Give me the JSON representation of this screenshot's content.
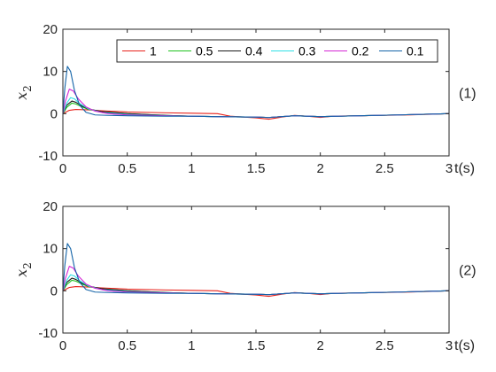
{
  "chart_data": [
    {
      "type": "line",
      "panel_label": "(1)",
      "xlabel": "t(s)",
      "ylabel": "x",
      "ylabel_sub": "2",
      "xlim": [
        0,
        3
      ],
      "ylim": [
        -10,
        20
      ],
      "xticks": [
        0,
        0.5,
        1,
        1.5,
        2,
        2.5,
        3
      ],
      "yticks": [
        -10,
        0,
        10,
        20
      ],
      "grid": false,
      "legend": {
        "placement": "top-right",
        "orientation": "horizontal"
      },
      "series": [
        {
          "name": "1",
          "color": "#e8231c",
          "points": [
            [
              0,
              0
            ],
            [
              0.05,
              0.8
            ],
            [
              0.1,
              1.0
            ],
            [
              0.2,
              0.9
            ],
            [
              0.3,
              0.7
            ],
            [
              0.5,
              0.4
            ],
            [
              0.8,
              0.2
            ],
            [
              1.0,
              0.1
            ],
            [
              1.2,
              0
            ],
            [
              1.3,
              -0.6
            ],
            [
              1.5,
              -1.0
            ],
            [
              1.6,
              -1.3
            ],
            [
              1.7,
              -0.8
            ],
            [
              1.8,
              -0.4
            ],
            [
              1.9,
              -0.6
            ],
            [
              2.0,
              -0.9
            ],
            [
              2.1,
              -0.6
            ],
            [
              2.3,
              -0.5
            ],
            [
              2.5,
              -0.4
            ],
            [
              2.7,
              -0.3
            ],
            [
              2.9,
              -0.1
            ],
            [
              3.0,
              0
            ]
          ]
        },
        {
          "name": "0.5",
          "color": "#1fc21f",
          "points": [
            [
              0,
              0
            ],
            [
              0.03,
              1.5
            ],
            [
              0.07,
              2.5
            ],
            [
              0.1,
              2.3
            ],
            [
              0.15,
              1.6
            ],
            [
              0.2,
              1.0
            ],
            [
              0.3,
              0.5
            ],
            [
              0.5,
              0
            ],
            [
              0.8,
              -0.4
            ],
            [
              1.0,
              -0.6
            ],
            [
              1.2,
              -0.7
            ],
            [
              1.5,
              -0.8
            ],
            [
              1.6,
              -0.9
            ],
            [
              1.8,
              -0.5
            ],
            [
              2.0,
              -0.7
            ],
            [
              2.3,
              -0.5
            ],
            [
              2.6,
              -0.3
            ],
            [
              3.0,
              0
            ]
          ]
        },
        {
          "name": "0.4",
          "color": "#1a1a1a",
          "points": [
            [
              0,
              0
            ],
            [
              0.03,
              2.0
            ],
            [
              0.07,
              3.0
            ],
            [
              0.1,
              2.7
            ],
            [
              0.15,
              1.8
            ],
            [
              0.2,
              1.1
            ],
            [
              0.3,
              0.5
            ],
            [
              0.5,
              0
            ],
            [
              0.8,
              -0.4
            ],
            [
              1.0,
              -0.6
            ],
            [
              1.2,
              -0.7
            ],
            [
              1.5,
              -0.8
            ],
            [
              1.6,
              -0.9
            ],
            [
              1.8,
              -0.5
            ],
            [
              2.0,
              -0.7
            ],
            [
              2.3,
              -0.5
            ],
            [
              2.6,
              -0.3
            ],
            [
              3.0,
              0
            ]
          ]
        },
        {
          "name": "0.3",
          "color": "#2fe0e6",
          "points": [
            [
              0,
              0
            ],
            [
              0.03,
              2.5
            ],
            [
              0.06,
              3.8
            ],
            [
              0.09,
              3.5
            ],
            [
              0.13,
              2.4
            ],
            [
              0.2,
              1.1
            ],
            [
              0.3,
              0.3
            ],
            [
              0.5,
              -0.2
            ],
            [
              0.8,
              -0.5
            ],
            [
              1.0,
              -0.6
            ],
            [
              1.2,
              -0.7
            ],
            [
              1.5,
              -0.8
            ],
            [
              1.6,
              -0.9
            ],
            [
              1.8,
              -0.5
            ],
            [
              2.0,
              -0.7
            ],
            [
              2.3,
              -0.5
            ],
            [
              2.6,
              -0.3
            ],
            [
              3.0,
              0
            ]
          ]
        },
        {
          "name": "0.2",
          "color": "#d526d5",
          "points": [
            [
              0,
              0
            ],
            [
              0.02,
              3.0
            ],
            [
              0.05,
              5.8
            ],
            [
              0.08,
              5.4
            ],
            [
              0.12,
              3.5
            ],
            [
              0.18,
              1.6
            ],
            [
              0.25,
              0.6
            ],
            [
              0.35,
              0
            ],
            [
              0.5,
              -0.3
            ],
            [
              0.8,
              -0.5
            ],
            [
              1.0,
              -0.6
            ],
            [
              1.2,
              -0.7
            ],
            [
              1.5,
              -0.8
            ],
            [
              1.6,
              -0.9
            ],
            [
              1.8,
              -0.5
            ],
            [
              2.0,
              -0.7
            ],
            [
              2.3,
              -0.5
            ],
            [
              2.6,
              -0.3
            ],
            [
              3.0,
              0
            ]
          ]
        },
        {
          "name": "0.1",
          "color": "#1464a8",
          "points": [
            [
              0,
              0
            ],
            [
              0.015,
              6.0
            ],
            [
              0.035,
              11.2
            ],
            [
              0.06,
              10.0
            ],
            [
              0.09,
              5.5
            ],
            [
              0.13,
              2.0
            ],
            [
              0.18,
              0.3
            ],
            [
              0.25,
              -0.3
            ],
            [
              0.35,
              -0.4
            ],
            [
              0.5,
              -0.5
            ],
            [
              0.8,
              -0.6
            ],
            [
              1.0,
              -0.6
            ],
            [
              1.2,
              -0.7
            ],
            [
              1.5,
              -0.8
            ],
            [
              1.6,
              -0.9
            ],
            [
              1.8,
              -0.5
            ],
            [
              2.0,
              -0.7
            ],
            [
              2.3,
              -0.5
            ],
            [
              2.6,
              -0.3
            ],
            [
              3.0,
              0
            ]
          ]
        }
      ]
    },
    {
      "type": "line",
      "panel_label": "(2)",
      "xlabel": "t(s)",
      "ylabel": "x",
      "ylabel_sub": "2",
      "xlim": [
        0,
        3
      ],
      "ylim": [
        -10,
        20
      ],
      "xticks": [
        0,
        0.5,
        1,
        1.5,
        2,
        2.5,
        3
      ],
      "yticks": [
        -10,
        0,
        10,
        20
      ],
      "grid": false,
      "series": [
        {
          "color": "#e8231c",
          "points": [
            [
              0,
              0
            ],
            [
              0.05,
              0.8
            ],
            [
              0.1,
              1.0
            ],
            [
              0.2,
              0.9
            ],
            [
              0.3,
              0.7
            ],
            [
              0.5,
              0.4
            ],
            [
              0.8,
              0.2
            ],
            [
              1.0,
              0.1
            ],
            [
              1.2,
              0
            ],
            [
              1.3,
              -0.6
            ],
            [
              1.5,
              -1.0
            ],
            [
              1.6,
              -1.3
            ],
            [
              1.7,
              -0.8
            ],
            [
              1.8,
              -0.4
            ],
            [
              1.9,
              -0.6
            ],
            [
              2.0,
              -0.9
            ],
            [
              2.1,
              -0.6
            ],
            [
              2.3,
              -0.5
            ],
            [
              2.5,
              -0.4
            ],
            [
              2.7,
              -0.3
            ],
            [
              2.9,
              -0.1
            ],
            [
              3.0,
              0
            ]
          ]
        },
        {
          "color": "#1fc21f",
          "points": [
            [
              0,
              0
            ],
            [
              0.03,
              1.5
            ],
            [
              0.07,
              2.5
            ],
            [
              0.1,
              2.3
            ],
            [
              0.15,
              1.6
            ],
            [
              0.2,
              1.0
            ],
            [
              0.3,
              0.5
            ],
            [
              0.5,
              0
            ],
            [
              0.8,
              -0.4
            ],
            [
              1.0,
              -0.6
            ],
            [
              1.2,
              -0.7
            ],
            [
              1.5,
              -0.8
            ],
            [
              1.6,
              -0.9
            ],
            [
              1.8,
              -0.5
            ],
            [
              2.0,
              -0.7
            ],
            [
              2.3,
              -0.5
            ],
            [
              2.6,
              -0.3
            ],
            [
              3.0,
              0
            ]
          ]
        },
        {
          "color": "#1a1a1a",
          "points": [
            [
              0,
              0
            ],
            [
              0.03,
              2.0
            ],
            [
              0.07,
              3.0
            ],
            [
              0.1,
              2.7
            ],
            [
              0.15,
              1.8
            ],
            [
              0.2,
              1.1
            ],
            [
              0.3,
              0.5
            ],
            [
              0.5,
              0
            ],
            [
              0.8,
              -0.4
            ],
            [
              1.0,
              -0.6
            ],
            [
              1.2,
              -0.7
            ],
            [
              1.5,
              -0.8
            ],
            [
              1.6,
              -0.9
            ],
            [
              1.8,
              -0.5
            ],
            [
              2.0,
              -0.7
            ],
            [
              2.3,
              -0.5
            ],
            [
              2.6,
              -0.3
            ],
            [
              3.0,
              0
            ]
          ]
        },
        {
          "color": "#2fe0e6",
          "points": [
            [
              0,
              0
            ],
            [
              0.03,
              2.5
            ],
            [
              0.06,
              3.8
            ],
            [
              0.09,
              3.5
            ],
            [
              0.13,
              2.4
            ],
            [
              0.2,
              1.1
            ],
            [
              0.3,
              0.3
            ],
            [
              0.5,
              -0.2
            ],
            [
              0.8,
              -0.5
            ],
            [
              1.0,
              -0.6
            ],
            [
              1.2,
              -0.7
            ],
            [
              1.5,
              -0.8
            ],
            [
              1.6,
              -0.9
            ],
            [
              1.8,
              -0.5
            ],
            [
              2.0,
              -0.7
            ],
            [
              2.3,
              -0.5
            ],
            [
              2.6,
              -0.3
            ],
            [
              3.0,
              0
            ]
          ]
        },
        {
          "color": "#d526d5",
          "points": [
            [
              0,
              0
            ],
            [
              0.02,
              3.0
            ],
            [
              0.05,
              5.8
            ],
            [
              0.08,
              5.4
            ],
            [
              0.12,
              3.5
            ],
            [
              0.18,
              1.6
            ],
            [
              0.25,
              0.6
            ],
            [
              0.35,
              0
            ],
            [
              0.5,
              -0.3
            ],
            [
              0.8,
              -0.5
            ],
            [
              1.0,
              -0.6
            ],
            [
              1.2,
              -0.7
            ],
            [
              1.5,
              -0.8
            ],
            [
              1.6,
              -0.9
            ],
            [
              1.8,
              -0.5
            ],
            [
              2.0,
              -0.7
            ],
            [
              2.3,
              -0.5
            ],
            [
              2.6,
              -0.3
            ],
            [
              3.0,
              0
            ]
          ]
        },
        {
          "color": "#1464a8",
          "points": [
            [
              0,
              0
            ],
            [
              0.015,
              6.0
            ],
            [
              0.035,
              11.2
            ],
            [
              0.06,
              10.0
            ],
            [
              0.09,
              5.5
            ],
            [
              0.13,
              2.0
            ],
            [
              0.18,
              0.3
            ],
            [
              0.25,
              -0.3
            ],
            [
              0.35,
              -0.4
            ],
            [
              0.5,
              -0.5
            ],
            [
              0.8,
              -0.6
            ],
            [
              1.0,
              -0.6
            ],
            [
              1.2,
              -0.7
            ],
            [
              1.5,
              -0.8
            ],
            [
              1.6,
              -0.9
            ],
            [
              1.8,
              -0.5
            ],
            [
              2.0,
              -0.7
            ],
            [
              2.3,
              -0.5
            ],
            [
              2.6,
              -0.3
            ],
            [
              3.0,
              0
            ]
          ]
        }
      ]
    }
  ]
}
